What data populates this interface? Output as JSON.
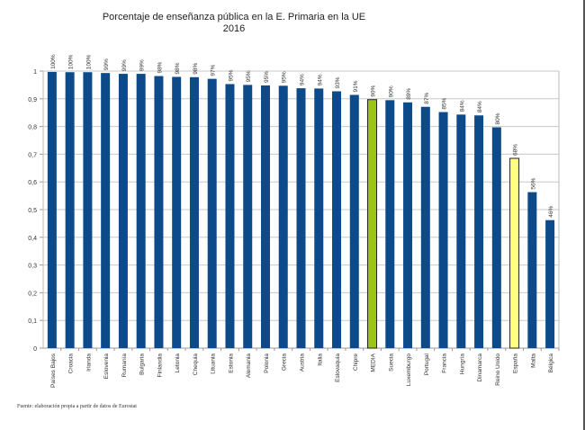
{
  "chart_data": {
    "type": "bar",
    "title": "Porcentaje de enseñanza pública en la E. Primaria en la UE",
    "subtitle": "2016",
    "xlabel": "",
    "ylabel": "",
    "ylim": [
      0,
      1
    ],
    "yticks": [
      "0",
      "0,1",
      "0,2",
      "0,3",
      "0,4",
      "0,5",
      "0,6",
      "0,7",
      "0,8",
      "0,9",
      "1"
    ],
    "grid": true,
    "categories": [
      "Países Bajos",
      "Croacia",
      "Irlanda",
      "Eslovenia",
      "Rumanía",
      "Bulgaria",
      "Finlandia",
      "Letonia",
      "Chequia",
      "Lituania",
      "Estonia",
      "Alemania",
      "Polonia",
      "Grecia",
      "Austria",
      "Italia",
      "Eslovaquia",
      "Chipre",
      "MEDIA",
      "Suecia",
      "Luxemburgo",
      "Portugal",
      "Francia",
      "Hungría",
      "Dinamarca",
      "Reino Unido",
      "España",
      "Malta",
      "Bélgica"
    ],
    "values": [
      0.997,
      0.996,
      0.996,
      0.993,
      0.99,
      0.99,
      0.982,
      0.979,
      0.978,
      0.972,
      0.953,
      0.95,
      0.948,
      0.947,
      0.938,
      0.937,
      0.927,
      0.914,
      0.897,
      0.895,
      0.887,
      0.871,
      0.852,
      0.843,
      0.84,
      0.797,
      0.685,
      0.563,
      0.462
    ],
    "data_labels": [
      "100%",
      "100%",
      "100%",
      "99%",
      "99%",
      "99%",
      "98%",
      "98%",
      "98%",
      "97%",
      "95%",
      "95%",
      "95%",
      "95%",
      "94%",
      "94%",
      "93%",
      "91%",
      "90%",
      "90%",
      "89%",
      "87%",
      "85%",
      "84%",
      "84%",
      "80%",
      "68%",
      "56%",
      "46%"
    ],
    "colors": {
      "default": "#0d4a8a",
      "MEDIA": "#9dc21a",
      "España": "#ffff80"
    }
  },
  "source_note": "Fuente: elaboración propia a partir de datos de Eurostat"
}
